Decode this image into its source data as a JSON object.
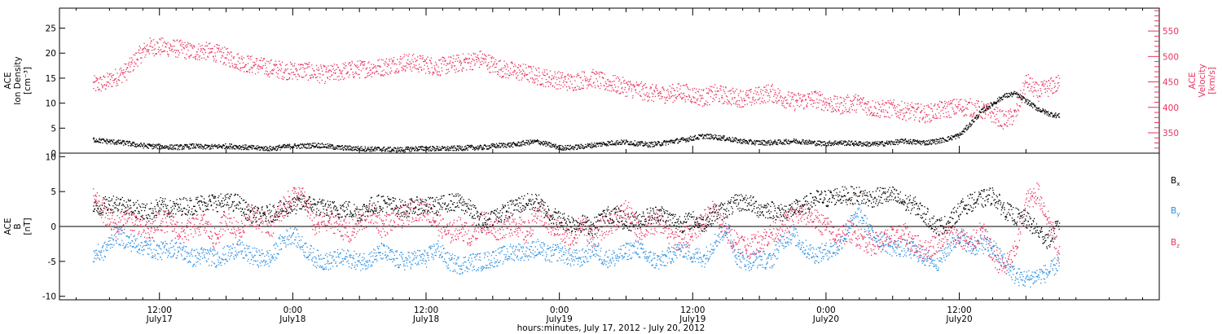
{
  "chart_data": [
    {
      "type": "scatter",
      "panel": "top",
      "ylabel_lines": [
        "ACE",
        "Ion Density",
        "[cm⁻³]"
      ],
      "ylim": [
        0,
        29
      ],
      "yticks": [
        0,
        5,
        10,
        15,
        20,
        25
      ],
      "y2label_lines": [
        "ACE",
        "Velocity",
        "[km/s]"
      ],
      "y2lim": [
        310,
        595
      ],
      "y2ticks": [
        350,
        400,
        450,
        500,
        550
      ],
      "series": [
        {
          "axis": "left",
          "color": "#000000",
          "x": [
            0,
            2,
            4,
            6,
            8,
            10,
            12,
            14,
            16,
            18,
            20,
            22,
            24,
            26,
            28,
            30,
            32,
            34,
            36,
            38,
            40,
            42,
            44,
            46,
            48,
            50,
            52,
            54,
            56,
            58,
            60,
            62,
            64,
            66,
            68,
            70,
            72,
            74,
            76,
            78,
            80,
            82,
            84,
            86,
            88,
            90,
            92,
            94,
            96,
            98,
            100,
            102,
            104,
            106,
            108,
            110,
            112,
            114,
            116,
            118,
            120,
            122,
            124,
            126,
            128,
            130,
            132,
            134,
            136,
            138,
            140,
            142,
            144,
            146,
            148,
            150,
            152,
            154,
            156,
            158,
            160,
            162,
            164,
            166,
            168,
            170,
            172,
            174
          ],
          "values": [
            2.8,
            2.5,
            2.3,
            2.1,
            1.7,
            1.5,
            1.4,
            1.3,
            1.3,
            1.5,
            1.3,
            1.4,
            1.5,
            1.4,
            1.2,
            1.1,
            1.0,
            1.3,
            1.5,
            1.5,
            1.7,
            1.5,
            1.2,
            1.1,
            1.0,
            0.9,
            0.9,
            0.8,
            0.8,
            1.0,
            1.0,
            1.0,
            1.0,
            1.1,
            1.2,
            1.2,
            1.5,
            1.7,
            1.8,
            2.2,
            2.4,
            1.8,
            1.2,
            1.2,
            1.4,
            1.7,
            2.0,
            2.2,
            2.3,
            2.0,
            1.8,
            2.0,
            2.4,
            2.7,
            3.1,
            3.5,
            3.3,
            3.0,
            2.6,
            2.3,
            2.2,
            2.2,
            2.3,
            2.5,
            2.4,
            2.1,
            2.0,
            2.2,
            2.1,
            2.0,
            1.9,
            2.0,
            2.2,
            2.5,
            2.3,
            2.2,
            2.5,
            3.0,
            3.7,
            6.0,
            8.5,
            10.0,
            11.5,
            12.0,
            10.5,
            9.0,
            8.0,
            7.5
          ],
          "spread": 0.5
        },
        {
          "axis": "right",
          "color": "#e8335f",
          "x": [
            0,
            2,
            4,
            6,
            8,
            10,
            12,
            14,
            16,
            18,
            20,
            22,
            24,
            26,
            28,
            30,
            32,
            34,
            36,
            38,
            40,
            42,
            44,
            46,
            48,
            50,
            52,
            54,
            56,
            58,
            60,
            62,
            64,
            66,
            68,
            70,
            72,
            74,
            76,
            78,
            80,
            82,
            84,
            86,
            88,
            90,
            92,
            94,
            96,
            98,
            100,
            102,
            104,
            106,
            108,
            110,
            112,
            114,
            116,
            118,
            120,
            122,
            124,
            126,
            128,
            130,
            132,
            134,
            136,
            138,
            140,
            142,
            144,
            146,
            148,
            150,
            152,
            154,
            156,
            158,
            160,
            162,
            164,
            166,
            168,
            170,
            172,
            174
          ],
          "values": [
            445,
            448,
            460,
            472,
            500,
            520,
            520,
            518,
            515,
            510,
            512,
            508,
            500,
            492,
            486,
            482,
            478,
            474,
            472,
            474,
            468,
            465,
            470,
            474,
            476,
            478,
            480,
            485,
            490,
            488,
            485,
            480,
            484,
            488,
            492,
            496,
            484,
            475,
            472,
            468,
            462,
            458,
            454,
            450,
            455,
            458,
            450,
            446,
            440,
            435,
            430,
            426,
            428,
            432,
            425,
            420,
            428,
            424,
            420,
            418,
            425,
            430,
            420,
            412,
            414,
            418,
            410,
            404,
            408,
            410,
            400,
            397,
            398,
            394,
            392,
            388,
            394,
            398,
            402,
            400,
            395,
            388,
            375,
            385,
            452,
            430,
            440,
            448
          ],
          "spread": 18
        }
      ]
    },
    {
      "type": "scatter",
      "panel": "bottom",
      "ylabel_lines": [
        "ACE",
        "B",
        "[nT]"
      ],
      "ylim": [
        -10.5,
        10.5
      ],
      "yticks": [
        -10,
        -5,
        0,
        5,
        10
      ],
      "zero_line": true,
      "series": [
        {
          "name": "Bx",
          "color": "#000000",
          "x": [
            0,
            2,
            4,
            6,
            8,
            10,
            12,
            14,
            16,
            18,
            20,
            22,
            24,
            26,
            28,
            30,
            32,
            34,
            36,
            38,
            40,
            42,
            44,
            46,
            48,
            50,
            52,
            54,
            56,
            58,
            60,
            62,
            64,
            66,
            68,
            70,
            72,
            74,
            76,
            78,
            80,
            82,
            84,
            86,
            88,
            90,
            92,
            94,
            96,
            98,
            100,
            102,
            104,
            106,
            108,
            110,
            112,
            114,
            116,
            118,
            120,
            122,
            124,
            126,
            128,
            130,
            132,
            134,
            136,
            138,
            140,
            142,
            144,
            146,
            148,
            150,
            152,
            154,
            156,
            158,
            160,
            162,
            164,
            166,
            168,
            170,
            172,
            174
          ],
          "values": [
            2.5,
            3.0,
            3.5,
            3.0,
            2.5,
            2.0,
            3.0,
            2.5,
            3.0,
            3.0,
            3.5,
            3.5,
            3.5,
            3.5,
            2.0,
            1.5,
            2.0,
            2.5,
            3.0,
            3.5,
            3.0,
            2.5,
            2.5,
            2.5,
            2.0,
            3.0,
            3.5,
            3.0,
            2.5,
            3.0,
            3.0,
            3.0,
            3.5,
            3.5,
            2.5,
            0.5,
            1.5,
            2.0,
            3.0,
            3.5,
            3.5,
            2.0,
            1.0,
            0.5,
            0.5,
            0.0,
            1.5,
            2.0,
            0.5,
            1.0,
            1.5,
            2.0,
            1.0,
            0.5,
            1.0,
            0.5,
            2.0,
            2.5,
            3.5,
            3.5,
            2.5,
            2.5,
            2.0,
            2.5,
            3.0,
            4.0,
            4.0,
            4.5,
            4.5,
            4.5,
            4.0,
            4.5,
            4.5,
            3.5,
            3.0,
            1.5,
            0.0,
            0.5,
            2.5,
            3.5,
            4.0,
            4.5,
            2.5,
            1.5,
            1.0,
            -0.5,
            -2.0,
            0.5
          ],
          "spread": 1.3
        },
        {
          "name": "By",
          "color": "#2b8fe0",
          "x": [
            0,
            2,
            4,
            6,
            8,
            10,
            12,
            14,
            16,
            18,
            20,
            22,
            24,
            26,
            28,
            30,
            32,
            34,
            36,
            38,
            40,
            42,
            44,
            46,
            48,
            50,
            52,
            54,
            56,
            58,
            60,
            62,
            64,
            66,
            68,
            70,
            72,
            74,
            76,
            78,
            80,
            82,
            84,
            86,
            88,
            90,
            92,
            94,
            96,
            98,
            100,
            102,
            104,
            106,
            108,
            110,
            112,
            114,
            116,
            118,
            120,
            122,
            124,
            126,
            128,
            130,
            132,
            134,
            136,
            138,
            140,
            142,
            144,
            146,
            148,
            150,
            152,
            154,
            156,
            158,
            160,
            162,
            164,
            166,
            168,
            170,
            172,
            174
          ],
          "values": [
            -4.0,
            -3.5,
            -1.0,
            -2.0,
            -2.5,
            -3.0,
            -3.5,
            -3.0,
            -3.5,
            -4.5,
            -4.0,
            -4.5,
            -4.0,
            -3.0,
            -4.0,
            -4.5,
            -4.5,
            -2.0,
            -1.0,
            -3.0,
            -4.5,
            -5.0,
            -4.5,
            -4.5,
            -5.0,
            -4.5,
            -3.5,
            -4.5,
            -5.0,
            -4.5,
            -4.5,
            -3.0,
            -5.0,
            -5.5,
            -5.0,
            -5.0,
            -4.5,
            -4.0,
            -3.5,
            -3.5,
            -3.0,
            -4.0,
            -3.5,
            -4.5,
            -4.5,
            -3.0,
            -4.5,
            -4.5,
            -3.5,
            -3.0,
            -4.5,
            -5.0,
            -4.0,
            -3.0,
            -4.0,
            -4.5,
            -2.0,
            0.0,
            -4.5,
            -5.0,
            -4.5,
            -5.0,
            -2.0,
            -1.0,
            -3.0,
            -4.0,
            -3.5,
            -3.0,
            0.0,
            2.0,
            -1.0,
            -2.0,
            -3.0,
            -3.0,
            -3.5,
            -4.5,
            -5.0,
            -3.0,
            -1.0,
            -3.0,
            -2.5,
            -3.0,
            -5.0,
            -7.0,
            -7.5,
            -7.0,
            -6.5,
            -5.0
          ],
          "spread": 1.3
        },
        {
          "name": "Bz",
          "color": "#e8335f",
          "x": [
            0,
            2,
            4,
            6,
            8,
            10,
            12,
            14,
            16,
            18,
            20,
            22,
            24,
            26,
            28,
            30,
            32,
            34,
            36,
            38,
            40,
            42,
            44,
            46,
            48,
            50,
            52,
            54,
            56,
            58,
            60,
            62,
            64,
            66,
            68,
            70,
            72,
            74,
            76,
            78,
            80,
            82,
            84,
            86,
            88,
            90,
            92,
            94,
            96,
            98,
            100,
            102,
            104,
            106,
            108,
            110,
            112,
            114,
            116,
            118,
            120,
            122,
            124,
            126,
            128,
            130,
            132,
            134,
            136,
            138,
            140,
            142,
            144,
            146,
            148,
            150,
            152,
            154,
            156,
            158,
            160,
            162,
            164,
            166,
            168,
            170,
            172,
            174
          ],
          "values": [
            4.0,
            2.0,
            0.0,
            1.5,
            0.5,
            -1.0,
            1.0,
            0.5,
            -1.0,
            0.0,
            0.5,
            -2.0,
            1.5,
            -1.0,
            2.0,
            1.0,
            0.0,
            2.5,
            4.5,
            4.0,
            0.0,
            1.0,
            0.5,
            -1.0,
            0.5,
            2.0,
            0.0,
            1.0,
            1.5,
            2.5,
            2.5,
            0.5,
            -1.0,
            0.0,
            -1.5,
            1.0,
            -0.5,
            0.0,
            0.5,
            -1.0,
            2.0,
            0.5,
            -0.5,
            -2.0,
            0.5,
            -1.5,
            0.0,
            1.0,
            2.5,
            -0.5,
            0.0,
            1.0,
            -1.5,
            -2.0,
            -0.5,
            1.0,
            2.5,
            -1.0,
            -2.0,
            -3.0,
            -2.0,
            -1.0,
            0.0,
            1.5,
            2.0,
            1.0,
            0.0,
            -1.5,
            -0.5,
            -1.5,
            -2.5,
            -2.0,
            -1.5,
            -1.0,
            -2.5,
            -3.5,
            -2.0,
            -1.0,
            -1.5,
            -2.5,
            -0.5,
            -4.0,
            -6.0,
            -3.5,
            3.5,
            5.0,
            1.0,
            -4.0
          ],
          "spread": 1.6
        }
      ]
    }
  ],
  "legend": {
    "bx": {
      "main": "B",
      "sub": "x",
      "color": "#000000"
    },
    "by": {
      "main": "B",
      "sub": "y",
      "color": "#2b8fe0"
    },
    "bz": {
      "main": "B",
      "sub": "z",
      "color": "#e8335f"
    }
  },
  "x_axis": {
    "xlim": [
      -6,
      192
    ],
    "ticks": [
      {
        "x": 12,
        "time": "12:00",
        "date": "July17"
      },
      {
        "x": 24,
        "time": "",
        "date": ""
      },
      {
        "x": 36,
        "time": "0:00",
        "date": "July18"
      },
      {
        "x": 48,
        "time": "",
        "date": ""
      },
      {
        "x": 60,
        "time": "12:00",
        "date": "July18"
      },
      {
        "x": 72,
        "time": "",
        "date": ""
      },
      {
        "x": 84,
        "time": "0:00",
        "date": "July19"
      },
      {
        "x": 96,
        "time": "",
        "date": ""
      },
      {
        "x": 108,
        "time": "12:00",
        "date": "July19"
      },
      {
        "x": 120,
        "time": "",
        "date": ""
      },
      {
        "x": 132,
        "time": "0:00",
        "date": "July20"
      },
      {
        "x": 144,
        "time": "",
        "date": ""
      },
      {
        "x": 156,
        "time": "12:00",
        "date": "July20"
      },
      {
        "x": 168,
        "time": "",
        "date": ""
      }
    ],
    "title": "hours:minutes, July 17, 2012 - July 20, 2012"
  }
}
